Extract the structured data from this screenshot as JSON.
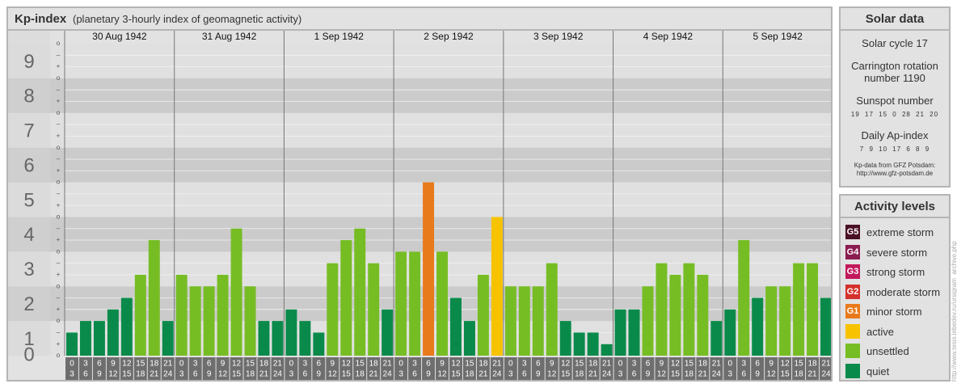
{
  "header": {
    "title": "Kp-index",
    "subtitle": "(planetary 3-hourly index of geomagnetic activity)"
  },
  "chart_data": {
    "type": "bar",
    "ylim": [
      0,
      9
    ],
    "y_tick_labels": [
      "0",
      "1",
      "2",
      "3",
      "4",
      "5",
      "6",
      "7",
      "8",
      "9"
    ],
    "sub_tick_labels": [
      "o",
      "+",
      "–"
    ],
    "days": [
      "30 Aug 1942",
      "31 Aug 1942",
      "1 Sep 1942",
      "2 Sep 1942",
      "3 Sep 1942",
      "4 Sep 1942",
      "5 Sep 1942"
    ],
    "interval_start_labels": [
      "0",
      "3",
      "6",
      "9",
      "12",
      "15",
      "18",
      "21"
    ],
    "interval_end_labels": [
      "3",
      "6",
      "9",
      "12",
      "15",
      "18",
      "21",
      "24"
    ],
    "values": [
      [
        0.667,
        1.0,
        1.0,
        1.333,
        1.667,
        2.333,
        3.333,
        1.0
      ],
      [
        2.333,
        2.0,
        2.0,
        2.333,
        3.667,
        2.0,
        1.0,
        1.0
      ],
      [
        1.333,
        1.0,
        0.667,
        2.667,
        3.333,
        3.667,
        2.667,
        1.333
      ],
      [
        3.0,
        3.0,
        5.0,
        3.0,
        1.667,
        1.0,
        2.333,
        4.0
      ],
      [
        2.0,
        2.0,
        2.0,
        2.667,
        1.0,
        0.667,
        0.667,
        0.333
      ],
      [
        1.333,
        1.333,
        2.0,
        2.667,
        2.333,
        2.667,
        2.333,
        1.0
      ],
      [
        1.333,
        3.333,
        1.667,
        2.0,
        2.0,
        2.667,
        2.667,
        1.667
      ]
    ],
    "colors": {
      "quiet": "#0a8a4a",
      "unsettled": "#76bd24",
      "active": "#f7c200",
      "minor_storm": "#e97a1b",
      "moderate_storm": "#d5312c",
      "strong_storm": "#c2185b",
      "severe_storm": "#8a1c4f",
      "extreme_storm": "#4a1026"
    }
  },
  "solar": {
    "title": "Solar data",
    "cycle": "Solar cycle 17",
    "carrington_line1": "Carrington rotation",
    "carrington_line2": "number 1190",
    "sunspot_title": "Sunspot number",
    "sunspot_values": "19 17 15 0 28 21 20",
    "ap_title": "Daily Ap-index",
    "ap_values": "7 9 10 17 6 8 9",
    "source_line1": "Kp-data from GFZ Potsdam:",
    "source_line2": "http://www.gfz-potsdam.de"
  },
  "activity": {
    "title": "Activity levels",
    "items": [
      {
        "code": "G5",
        "label": "extreme storm",
        "color": "#4a1026"
      },
      {
        "code": "G4",
        "label": "severe storm",
        "color": "#8a1c4f"
      },
      {
        "code": "G3",
        "label": "strong storm",
        "color": "#c2185b"
      },
      {
        "code": "G2",
        "label": "moderate storm",
        "color": "#d5312c"
      },
      {
        "code": "G1",
        "label": "minor storm",
        "color": "#e97a1b"
      },
      {
        "code": "",
        "label": "active",
        "color": "#f7c200"
      },
      {
        "code": "",
        "label": "unsettled",
        "color": "#76bd24"
      },
      {
        "code": "",
        "label": "quiet",
        "color": "#0a8a4a"
      }
    ]
  },
  "watermark": "http://www.tesis.lebedev.ru/ursigram_archive.php"
}
